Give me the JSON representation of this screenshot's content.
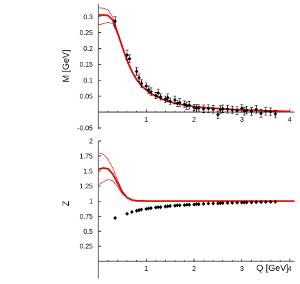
{
  "chart_data": [
    {
      "type": "line",
      "ylabel": "M [GeV]",
      "xlabel": "",
      "xlim": [
        0,
        4.1
      ],
      "ylim": [
        -0.05,
        0.34
      ],
      "xticks": [
        1,
        2,
        3,
        4
      ],
      "yticks": [
        -0.05,
        0.05,
        0.1,
        0.15,
        0.2,
        0.25,
        0.3
      ],
      "ytick_labels": [
        "-0.05",
        "0.05",
        "0.1",
        "0.15",
        "0.2",
        "0.25",
        "0.3"
      ],
      "series": [
        {
          "role": "central",
          "color": "#e01010",
          "x": [
            0,
            0.1,
            0.2,
            0.3,
            0.4,
            0.5,
            0.6,
            0.7,
            0.8,
            0.9,
            1.0,
            1.1,
            1.2,
            1.4,
            1.6,
            1.8,
            2.0,
            2.5,
            3.0,
            3.5,
            4.0
          ],
          "y": [
            0.306,
            0.306,
            0.304,
            0.29,
            0.25,
            0.205,
            0.162,
            0.128,
            0.102,
            0.083,
            0.07,
            0.058,
            0.05,
            0.037,
            0.028,
            0.022,
            0.017,
            0.011,
            0.007,
            0.004,
            0.002
          ]
        },
        {
          "role": "upper-band",
          "color": "#e01010",
          "x": [
            0,
            0.1,
            0.2,
            0.3,
            0.4,
            0.5,
            0.6,
            0.7,
            0.8,
            0.9,
            1.0,
            1.1,
            1.2,
            1.4,
            1.6,
            1.8,
            2.0,
            2.5,
            3.0,
            3.5,
            4.0
          ],
          "y": [
            0.328,
            0.327,
            0.322,
            0.3,
            0.255,
            0.207,
            0.163,
            0.129,
            0.103,
            0.084,
            0.071,
            0.059,
            0.051,
            0.038,
            0.029,
            0.023,
            0.018,
            0.012,
            0.008,
            0.005,
            0.003
          ]
        },
        {
          "role": "lower-band",
          "color": "#e01010",
          "x": [
            0,
            0.1,
            0.2,
            0.3,
            0.4,
            0.5,
            0.6,
            0.7,
            0.8,
            0.9,
            1.0,
            1.1,
            1.2,
            1.4,
            1.6,
            1.8,
            2.0,
            2.5,
            3.0,
            3.5,
            4.0
          ],
          "y": [
            0.275,
            0.278,
            0.283,
            0.278,
            0.245,
            0.203,
            0.161,
            0.127,
            0.101,
            0.082,
            0.069,
            0.057,
            0.049,
            0.036,
            0.027,
            0.021,
            0.016,
            0.01,
            0.006,
            0.003,
            0.001
          ]
        },
        {
          "role": "data-points",
          "color": "#000000",
          "x": [
            0.35,
            0.6,
            0.65,
            0.8,
            0.85,
            0.9,
            1.0,
            1.05,
            1.1,
            1.2,
            1.25,
            1.3,
            1.4,
            1.45,
            1.5,
            1.6,
            1.65,
            1.7,
            1.8,
            1.85,
            1.9,
            2.0,
            2.05,
            2.1,
            2.2,
            2.3,
            2.4,
            2.5,
            2.55,
            2.6,
            2.7,
            2.8,
            2.9,
            3.0,
            3.05,
            3.1,
            3.2,
            3.3,
            3.4,
            3.5,
            3.6,
            3.7
          ],
          "y": [
            0.286,
            0.18,
            0.168,
            0.128,
            0.108,
            0.09,
            0.082,
            0.07,
            0.064,
            0.052,
            0.06,
            0.048,
            0.04,
            0.045,
            0.034,
            0.038,
            0.028,
            0.03,
            0.025,
            0.02,
            0.022,
            0.015,
            0.012,
            0.013,
            0.01,
            0.011,
            0.009,
            -0.008,
            0.008,
            0.01,
            0.009,
            0.007,
            0.005,
            0.012,
            0.003,
            0.006,
            0.002,
            0.008,
            -0.004,
            0.003,
            0.001,
            -0.006
          ],
          "err": [
            0.015,
            0.015,
            0.012,
            0.012,
            0.012,
            0.012,
            0.01,
            0.012,
            0.012,
            0.01,
            0.012,
            0.01,
            0.01,
            0.012,
            0.01,
            0.012,
            0.01,
            0.012,
            0.01,
            0.012,
            0.012,
            0.01,
            0.012,
            0.01,
            0.012,
            0.012,
            0.012,
            0.012,
            0.012,
            0.012,
            0.012,
            0.012,
            0.012,
            0.012,
            0.012,
            0.012,
            0.012,
            0.012,
            0.012,
            0.012,
            0.012,
            0.012
          ]
        }
      ]
    },
    {
      "type": "line",
      "ylabel": "Z",
      "xlabel": "Q [GeV]",
      "xlim": [
        0,
        4.1
      ],
      "ylim": [
        0,
        2
      ],
      "xticks": [
        1,
        2,
        3,
        4
      ],
      "yticks": [
        0.25,
        0.5,
        0.75,
        1,
        1.25,
        1.5,
        1.75,
        2
      ],
      "ytick_labels": [
        "0.25",
        "0.5",
        "0.75",
        "1",
        "1.25",
        "1.5",
        "1.75",
        "2"
      ],
      "series": [
        {
          "role": "central",
          "color": "#e01010",
          "x": [
            0,
            0.1,
            0.2,
            0.3,
            0.4,
            0.5,
            0.6,
            0.7,
            0.8,
            1.0,
            1.5,
            2.0,
            3.0,
            4.1
          ],
          "y": [
            1.53,
            1.55,
            1.54,
            1.45,
            1.3,
            1.15,
            1.06,
            1.02,
            1.005,
            1.0,
            1.0,
            1.0,
            1.0,
            1.0
          ]
        },
        {
          "role": "upper-band",
          "color": "#e01010",
          "x": [
            0,
            0.1,
            0.2,
            0.3,
            0.4,
            0.5,
            0.6,
            0.7,
            0.8,
            1.0,
            1.5,
            2.0,
            3.0,
            4.1
          ],
          "y": [
            1.8,
            1.78,
            1.7,
            1.55,
            1.35,
            1.17,
            1.07,
            1.025,
            1.005,
            1.0,
            1.0,
            1.0,
            1.0,
            1.0
          ]
        },
        {
          "role": "lower-band",
          "color": "#e01010",
          "x": [
            0,
            0.1,
            0.2,
            0.3,
            0.4,
            0.5,
            0.6,
            0.7,
            0.8,
            1.0,
            1.5,
            2.0,
            3.0,
            4.1
          ],
          "y": [
            1.27,
            1.32,
            1.36,
            1.34,
            1.24,
            1.12,
            1.05,
            1.015,
            1.003,
            1.0,
            1.0,
            1.0,
            1.0,
            1.0
          ]
        },
        {
          "role": "data-points",
          "color": "#000000",
          "x": [
            0.35,
            0.6,
            0.7,
            0.8,
            0.85,
            0.9,
            1.0,
            1.05,
            1.1,
            1.2,
            1.25,
            1.3,
            1.4,
            1.45,
            1.5,
            1.6,
            1.65,
            1.7,
            1.8,
            1.85,
            1.9,
            2.0,
            2.05,
            2.1,
            2.2,
            2.3,
            2.4,
            2.5,
            2.55,
            2.6,
            2.7,
            2.8,
            2.9,
            3.0,
            3.05,
            3.1,
            3.2,
            3.3,
            3.4,
            3.5,
            3.6,
            3.7
          ],
          "y": [
            0.72,
            0.79,
            0.82,
            0.84,
            0.85,
            0.86,
            0.87,
            0.88,
            0.885,
            0.895,
            0.9,
            0.9,
            0.91,
            0.915,
            0.92,
            0.925,
            0.93,
            0.93,
            0.935,
            0.94,
            0.94,
            0.945,
            0.95,
            0.95,
            0.955,
            0.96,
            0.962,
            0.965,
            0.966,
            0.968,
            0.97,
            0.972,
            0.974,
            0.976,
            0.977,
            0.978,
            0.98,
            0.982,
            0.984,
            0.986,
            0.988,
            0.99
          ]
        }
      ]
    }
  ]
}
